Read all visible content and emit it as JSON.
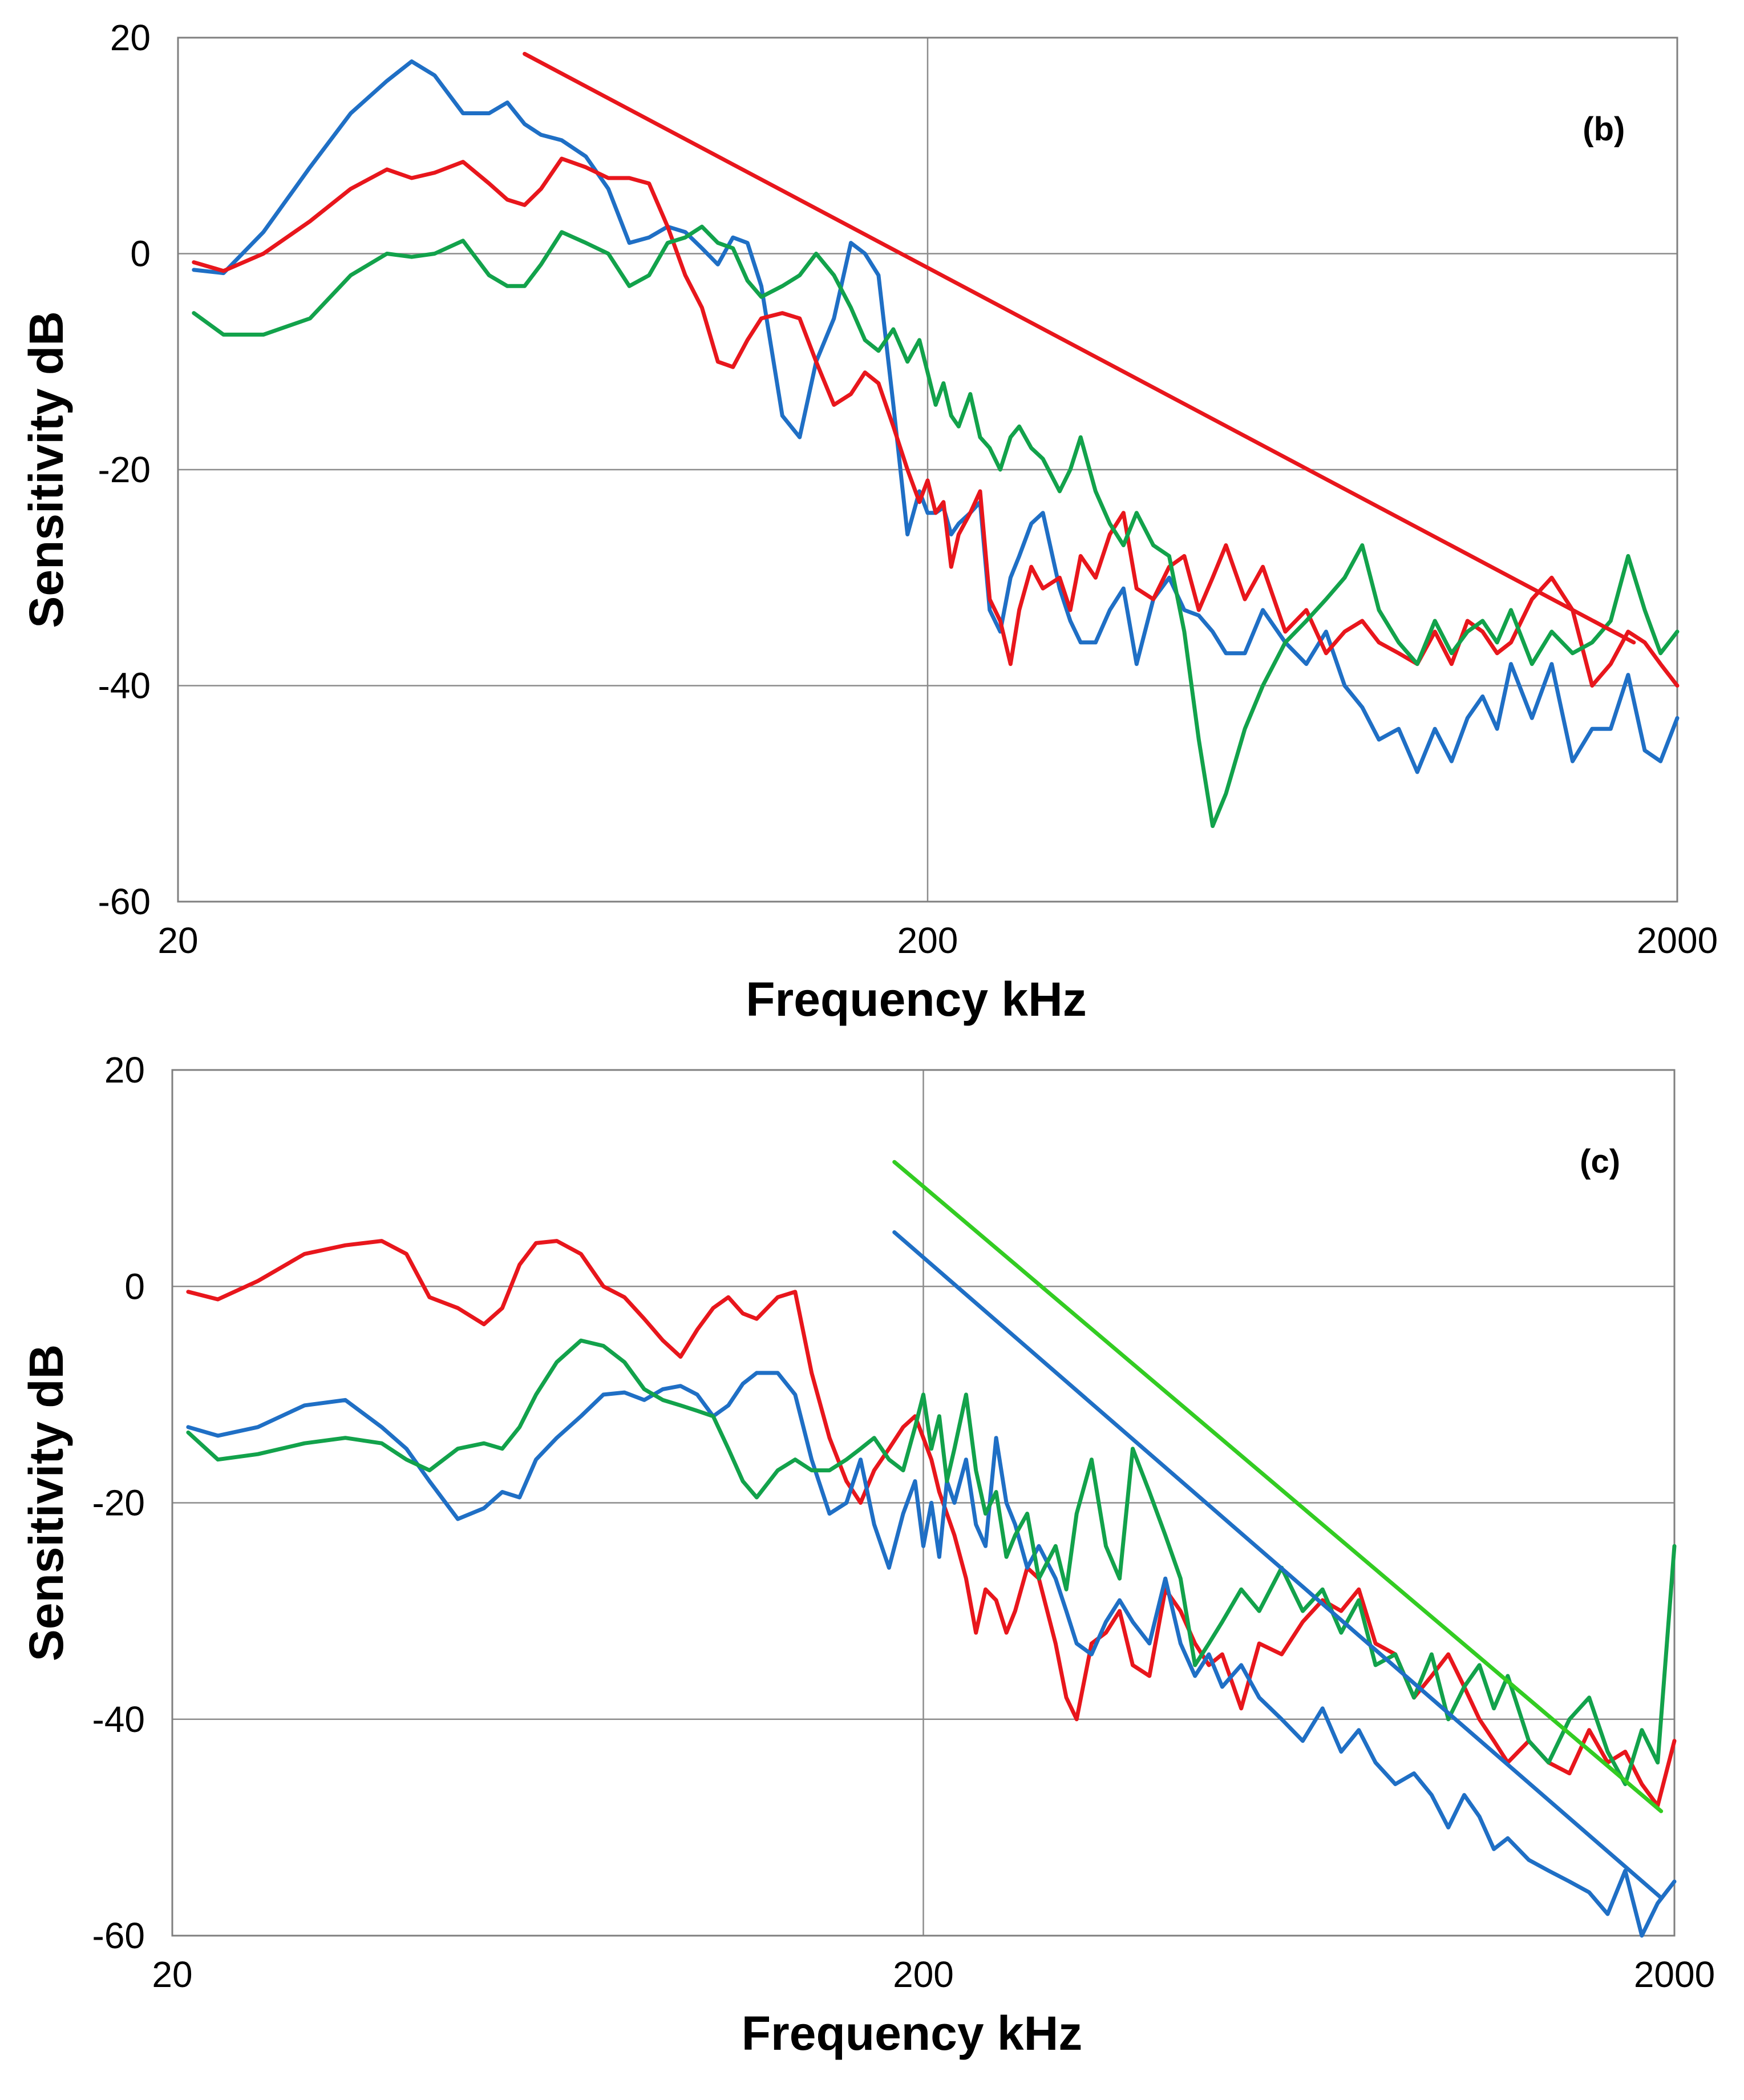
{
  "chart_data": [
    {
      "type": "line",
      "panel_label": "(b)",
      "xlabel": "Frequency  kHz",
      "ylabel": "Sensitivity  dB",
      "xscale": "log",
      "xlim": [
        20,
        2000
      ],
      "ylim": [
        -60,
        20
      ],
      "xticks": [
        "20",
        "200",
        "2000"
      ],
      "yticks": [
        "20",
        "0",
        "-20",
        "-40",
        "-60"
      ],
      "grid": true,
      "series": [
        {
          "name": "blue",
          "color": "#1F6FC5",
          "x": [
            21,
            23,
            26,
            30,
            34,
            38,
            41,
            44,
            48,
            52,
            55,
            58,
            61,
            65,
            70,
            75,
            80,
            85,
            90,
            95,
            100,
            105,
            110,
            115,
            120,
            128,
            135,
            142,
            150,
            158,
            165,
            172,
            180,
            188,
            195,
            200,
            205,
            210,
            215,
            220,
            228,
            235,
            242,
            250,
            258,
            265,
            275,
            285,
            300,
            310,
            320,
            335,
            350,
            365,
            380,
            400,
            420,
            440,
            460,
            480,
            500,
            530,
            560,
            600,
            640,
            680,
            720,
            760,
            800,
            850,
            900,
            950,
            1000,
            1050,
            1100,
            1150,
            1200,
            1280,
            1360,
            1450,
            1540,
            1630,
            1720,
            1810,
            1900,
            2000
          ],
          "y": [
            -1.5,
            -1.8,
            2,
            8,
            13,
            16,
            17.8,
            16.5,
            13,
            13,
            14,
            12,
            11,
            10.5,
            9,
            6,
            1,
            1.5,
            2.5,
            2,
            0.5,
            -1,
            1.5,
            1,
            -3,
            -15,
            -17,
            -10,
            -6,
            1,
            0,
            -2,
            -14,
            -26,
            -22,
            -24,
            -24,
            -23.5,
            -26,
            -25,
            -24,
            -23,
            -33,
            -35,
            -30,
            -28,
            -25,
            -24,
            -31,
            -34,
            -36,
            -36,
            -33,
            -31,
            -38,
            -32,
            -30,
            -33,
            -33.5,
            -35,
            -37,
            -37,
            -33,
            -36,
            -38,
            -35,
            -40,
            -42,
            -45,
            -44,
            -48,
            -44,
            -47,
            -43,
            -41,
            -44,
            -38,
            -43,
            -38,
            -47,
            -44,
            -44,
            -39,
            -46,
            -47,
            -43
          ]
        },
        {
          "name": "red",
          "color": "#E8161C",
          "x": [
            21,
            23,
            26,
            30,
            34,
            38,
            41,
            44,
            48,
            52,
            55,
            58,
            61,
            65,
            70,
            75,
            80,
            85,
            90,
            95,
            100,
            105,
            110,
            115,
            120,
            128,
            135,
            142,
            150,
            158,
            165,
            172,
            180,
            188,
            195,
            200,
            205,
            210,
            215,
            220,
            228,
            235,
            242,
            250,
            258,
            265,
            275,
            285,
            300,
            310,
            320,
            335,
            350,
            365,
            380,
            400,
            420,
            440,
            460,
            480,
            500,
            530,
            560,
            600,
            640,
            680,
            720,
            760,
            800,
            850,
            900,
            950,
            1000,
            1050,
            1100,
            1150,
            1200,
            1280,
            1360,
            1450,
            1540,
            1630,
            1720,
            1810,
            1900,
            2000
          ],
          "y": [
            -0.8,
            -1.6,
            0,
            3,
            6,
            7.8,
            7,
            7.5,
            8.5,
            6.5,
            5,
            4.5,
            6,
            8.8,
            8,
            7,
            7,
            6.5,
            2.5,
            -2,
            -5,
            -10,
            -10.5,
            -8,
            -6,
            -5.5,
            -6,
            -10,
            -14,
            -13,
            -11,
            -12,
            -16,
            -20,
            -23,
            -21,
            -24,
            -23,
            -29,
            -26,
            -24,
            -22,
            -32,
            -34,
            -38,
            -33,
            -29,
            -31,
            -30,
            -33,
            -28,
            -30,
            -26,
            -24,
            -31,
            -32,
            -29,
            -28,
            -33,
            -30,
            -27,
            -32,
            -29,
            -35,
            -33,
            -37,
            -35,
            -34,
            -36,
            -37,
            -38,
            -35,
            -38,
            -34,
            -35,
            -37,
            -36,
            -32,
            -30,
            -33,
            -40,
            -38,
            -35,
            -36,
            -38,
            -40
          ]
        },
        {
          "name": "green",
          "color": "#12A24B",
          "x": [
            21,
            23,
            26,
            30,
            34,
            38,
            41,
            44,
            48,
            52,
            55,
            58,
            61,
            65,
            70,
            75,
            80,
            85,
            90,
            95,
            100,
            105,
            110,
            115,
            120,
            128,
            135,
            142,
            150,
            158,
            165,
            172,
            180,
            188,
            195,
            200,
            205,
            210,
            215,
            220,
            228,
            235,
            242,
            250,
            258,
            265,
            275,
            285,
            300,
            310,
            320,
            335,
            350,
            365,
            380,
            400,
            420,
            440,
            460,
            480,
            500,
            530,
            560,
            600,
            640,
            680,
            720,
            760,
            800,
            850,
            900,
            950,
            1000,
            1050,
            1100,
            1150,
            1200,
            1280,
            1360,
            1450,
            1540,
            1630,
            1720,
            1810,
            1900,
            2000
          ],
          "y": [
            -5.5,
            -7.5,
            -7.5,
            -6,
            -2,
            0,
            -0.3,
            0,
            1.2,
            -2,
            -3,
            -3,
            -1,
            2,
            1,
            0,
            -3,
            -2,
            1,
            1.5,
            2.5,
            1,
            0.5,
            -2.5,
            -4,
            -3,
            -2,
            0,
            -2,
            -5,
            -8,
            -9,
            -7,
            -10,
            -8,
            -11,
            -14,
            -12,
            -15,
            -16,
            -13,
            -17,
            -18,
            -20,
            -17,
            -16,
            -18,
            -19,
            -22,
            -20,
            -17,
            -22,
            -25,
            -27,
            -24,
            -27,
            -28,
            -35,
            -45,
            -53,
            -50,
            -44,
            -40,
            -36,
            -34,
            -32,
            -30,
            -27,
            -33,
            -36,
            -38,
            -34,
            -37,
            -35,
            -34,
            -36,
            -33,
            -38,
            -35,
            -37,
            -36,
            -34,
            -28,
            -33,
            -37,
            -35
          ]
        },
        {
          "name": "red fit",
          "color": "#E8161C",
          "x": [
            58,
            1750
          ],
          "y": [
            18.5,
            -36
          ]
        }
      ]
    },
    {
      "type": "line",
      "panel_label": "(c)",
      "xlabel": "Frequency  kHz",
      "ylabel": "Sensitivity  dB",
      "xscale": "log",
      "xlim": [
        20,
        2000
      ],
      "ylim": [
        -60,
        20
      ],
      "xticks": [
        "20",
        "200",
        "2000"
      ],
      "yticks": [
        "20",
        "0",
        "-20",
        "-40",
        "-60"
      ],
      "grid": true,
      "series": [
        {
          "name": "red",
          "color": "#E8161C",
          "x": [
            21,
            23,
            26,
            30,
            34,
            38,
            41,
            44,
            48,
            52,
            55,
            58,
            61,
            65,
            70,
            75,
            80,
            85,
            90,
            95,
            100,
            105,
            110,
            115,
            120,
            128,
            135,
            142,
            150,
            158,
            165,
            172,
            180,
            188,
            195,
            200,
            205,
            210,
            215,
            220,
            228,
            235,
            242,
            250,
            258,
            265,
            275,
            285,
            300,
            310,
            320,
            335,
            350,
            365,
            380,
            400,
            420,
            440,
            460,
            480,
            500,
            530,
            560,
            600,
            640,
            680,
            720,
            760,
            800,
            850,
            900,
            950,
            1000,
            1050,
            1100,
            1150,
            1200,
            1280,
            1360,
            1450,
            1540,
            1630,
            1720,
            1810,
            1900,
            2000
          ],
          "y": [
            -0.5,
            -1.2,
            0.5,
            3,
            3.8,
            4.2,
            3,
            -1,
            -2,
            -3.5,
            -2,
            2,
            4,
            4.2,
            3,
            0,
            -1,
            -3,
            -5,
            -6.5,
            -4,
            -2,
            -1,
            -2.5,
            -3,
            -1,
            -0.5,
            -8,
            -14,
            -18,
            -20,
            -17,
            -15,
            -13,
            -12,
            -14,
            -16,
            -19,
            -21,
            -23,
            -27,
            -32,
            -28,
            -29,
            -32,
            -30,
            -26,
            -27,
            -33,
            -38,
            -40,
            -33,
            -32,
            -30,
            -35,
            -36,
            -28,
            -30,
            -33,
            -35,
            -34,
            -39,
            -33,
            -34,
            -31,
            -29,
            -30,
            -28,
            -33,
            -34,
            -38,
            -36,
            -34,
            -37,
            -40,
            -42,
            -44,
            -42,
            -44,
            -45,
            -41,
            -44,
            -43,
            -46,
            -48,
            -42
          ]
        },
        {
          "name": "blue",
          "color": "#1F6FC5",
          "x": [
            21,
            23,
            26,
            30,
            34,
            38,
            41,
            44,
            48,
            52,
            55,
            58,
            61,
            65,
            70,
            75,
            80,
            85,
            90,
            95,
            100,
            105,
            110,
            115,
            120,
            128,
            135,
            142,
            150,
            158,
            165,
            172,
            180,
            188,
            195,
            200,
            205,
            210,
            215,
            220,
            228,
            235,
            242,
            250,
            258,
            265,
            275,
            285,
            300,
            310,
            320,
            335,
            350,
            365,
            380,
            400,
            420,
            440,
            460,
            480,
            500,
            530,
            560,
            600,
            640,
            680,
            720,
            760,
            800,
            850,
            900,
            950,
            1000,
            1050,
            1100,
            1150,
            1200,
            1280,
            1360,
            1450,
            1540,
            1630,
            1720,
            1810,
            1900,
            2000
          ],
          "y": [
            -13,
            -13.8,
            -13,
            -11,
            -10.5,
            -13,
            -15,
            -18,
            -21.5,
            -20.5,
            -19,
            -19.5,
            -16,
            -14,
            -12,
            -10,
            -9.8,
            -10.5,
            -9.5,
            -9.2,
            -10,
            -12,
            -11,
            -9,
            -8,
            -8,
            -10,
            -16,
            -21,
            -20,
            -16,
            -22,
            -26,
            -21,
            -18,
            -24,
            -20,
            -25,
            -18,
            -20,
            -16,
            -22,
            -24,
            -14,
            -20,
            -22,
            -26,
            -24,
            -27,
            -30,
            -33,
            -34,
            -31,
            -29,
            -31,
            -33,
            -27,
            -33,
            -36,
            -34,
            -37,
            -35,
            -38,
            -40,
            -42,
            -39,
            -43,
            -41,
            -44,
            -46,
            -45,
            -47,
            -50,
            -47,
            -49,
            -52,
            -51,
            -53,
            -54,
            -55,
            -56,
            -58,
            -54,
            -60,
            -57,
            -55
          ]
        },
        {
          "name": "green",
          "color": "#12A24B",
          "x": [
            21,
            23,
            26,
            30,
            34,
            38,
            41,
            44,
            48,
            52,
            55,
            58,
            61,
            65,
            70,
            75,
            80,
            85,
            90,
            95,
            100,
            105,
            110,
            115,
            120,
            128,
            135,
            142,
            150,
            158,
            165,
            172,
            180,
            188,
            195,
            200,
            205,
            210,
            215,
            220,
            228,
            235,
            242,
            250,
            258,
            265,
            275,
            285,
            300,
            310,
            320,
            335,
            350,
            365,
            380,
            400,
            420,
            440,
            460,
            480,
            500,
            530,
            560,
            600,
            640,
            680,
            720,
            760,
            800,
            850,
            900,
            950,
            1000,
            1050,
            1100,
            1150,
            1200,
            1280,
            1360,
            1450,
            1540,
            1630,
            1720,
            1810,
            1900,
            2000
          ],
          "y": [
            -13.5,
            -16,
            -15.5,
            -14.5,
            -14,
            -14.5,
            -16,
            -17,
            -15,
            -14.5,
            -15,
            -13,
            -10,
            -7,
            -5,
            -5.5,
            -7,
            -9.5,
            -10.5,
            -11,
            -11.5,
            -12,
            -15,
            -18,
            -19.5,
            -17,
            -16,
            -17,
            -17,
            -16,
            -15,
            -14,
            -16,
            -17,
            -13,
            -10,
            -15,
            -12,
            -18,
            -15,
            -10,
            -17,
            -21,
            -19,
            -25,
            -23,
            -21,
            -27,
            -24,
            -28,
            -21,
            -16,
            -24,
            -27,
            -15,
            -19,
            -23,
            -27,
            -35,
            -33,
            -31,
            -28,
            -30,
            -26,
            -30,
            -28,
            -32,
            -29,
            -35,
            -34,
            -38,
            -34,
            -40,
            -37,
            -35,
            -39,
            -36,
            -42,
            -44,
            -40,
            -38,
            -43,
            -46,
            -41,
            -44,
            -24
          ]
        },
        {
          "name": "green fit",
          "color": "#33CC22",
          "x": [
            183,
            1920
          ],
          "y": [
            11.5,
            -48.5
          ]
        },
        {
          "name": "blue fit",
          "color": "#1F6FC5",
          "x": [
            183,
            1920
          ],
          "y": [
            5,
            -56.5
          ]
        }
      ]
    }
  ]
}
